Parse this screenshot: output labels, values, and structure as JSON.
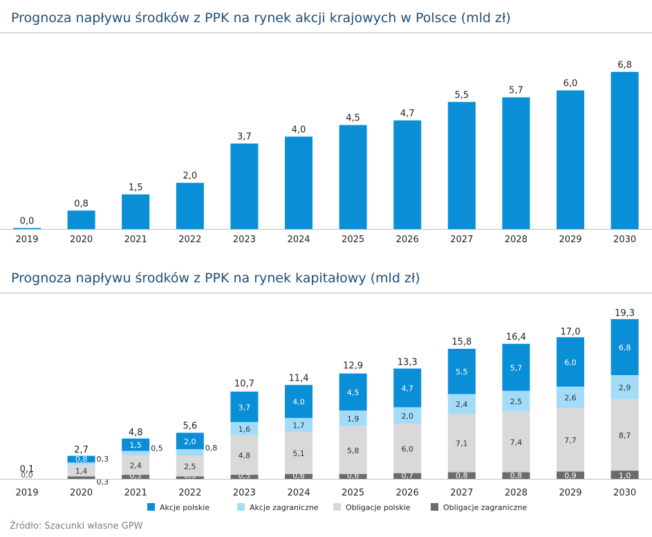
{
  "source": "Źródło: Szacunki własne GPW",
  "colors": {
    "title": "#1f4e79",
    "akcje_polskie": "#0a8ed6",
    "akcje_zagraniczne": "#a3dcf9",
    "obligacje_polskie": "#d9d9d9",
    "obligacje_zagraniczne": "#6b6b6b"
  },
  "chart_data": [
    {
      "type": "bar",
      "title": "Prognoza napływu środków z PPK na rynek akcji krajowych w Polsce (mld zł)",
      "categories": [
        "2019",
        "2020",
        "2021",
        "2022",
        "2023",
        "2024",
        "2025",
        "2026",
        "2027",
        "2028",
        "2029",
        "2030"
      ],
      "values": [
        0.0,
        0.8,
        1.5,
        2.0,
        3.7,
        4.0,
        4.5,
        4.7,
        5.5,
        5.7,
        6.0,
        6.8
      ],
      "labels": [
        "0,0",
        "0,8",
        "1,5",
        "2,0",
        "3,7",
        "4,0",
        "4,5",
        "4,7",
        "5,5",
        "5,7",
        "6,0",
        "6,8"
      ],
      "ylim": [
        0,
        7.4
      ],
      "grid": false,
      "legend": false
    },
    {
      "type": "bar",
      "stacked": true,
      "title": "Prognoza napływu środków z PPK na rynek kapitałowy (mld zł)",
      "categories": [
        "2019",
        "2020",
        "2021",
        "2022",
        "2023",
        "2024",
        "2025",
        "2026",
        "2027",
        "2028",
        "2029",
        "2030"
      ],
      "series": [
        {
          "name": "Obligacje zagraniczne",
          "values": [
            0.0,
            0.3,
            0.5,
            0.3,
            0.5,
            0.6,
            0.6,
            0.7,
            0.8,
            0.8,
            0.9,
            1.0
          ],
          "labels": [
            "",
            "0,3",
            "0,5",
            "0,3",
            "0,5",
            "0,6",
            "0,6",
            "0,7",
            "0,8",
            "0,8",
            "0,9",
            "1,0"
          ]
        },
        {
          "name": "Obligacje polskie",
          "values": [
            0.0,
            1.4,
            2.4,
            2.5,
            4.8,
            5.1,
            5.8,
            6.0,
            7.1,
            7.4,
            7.7,
            8.7
          ],
          "labels": [
            "0,0",
            "1,4",
            "2,4",
            "2,5",
            "4,8",
            "5,1",
            "5,8",
            "6,0",
            "7,1",
            "7,4",
            "7,7",
            "8,7"
          ]
        },
        {
          "name": "Akcje zagraniczne",
          "values": [
            0.0,
            0.3,
            0.5,
            0.8,
            1.6,
            1.7,
            1.9,
            2.0,
            2.4,
            2.5,
            2.6,
            2.9
          ],
          "labels": [
            "",
            "0,3",
            "0,5",
            "0,8",
            "1,6",
            "1,7",
            "1,9",
            "2,0",
            "2,4",
            "2,5",
            "2,6",
            "2,9"
          ]
        },
        {
          "name": "Akcje polskie",
          "values": [
            0.0,
            0.8,
            1.5,
            2.0,
            3.7,
            4.0,
            4.5,
            4.7,
            5.5,
            5.7,
            6.0,
            6.8
          ],
          "labels": [
            "",
            "0,8",
            "1,5",
            "2,0",
            "3,7",
            "4,0",
            "4,5",
            "4,7",
            "5,5",
            "5,7",
            "6,0",
            "6,8"
          ]
        }
      ],
      "totals": [
        0.1,
        2.7,
        4.8,
        5.6,
        10.7,
        11.4,
        12.9,
        13.3,
        15.8,
        16.4,
        17.0,
        19.3
      ],
      "total_labels": [
        "0,1",
        "2,7",
        "4,8",
        "5,6",
        "10,7",
        "11,4",
        "12,9",
        "13,3",
        "15,8",
        "16,4",
        "17,0",
        "19,3"
      ],
      "legend_order": [
        "Akcje polskie",
        "Akcje zagraniczne",
        "Obligacje polskie",
        "Obligacje zagraniczne"
      ],
      "ylim": [
        0,
        21.2
      ],
      "grid": false,
      "legend": "bottom"
    }
  ]
}
